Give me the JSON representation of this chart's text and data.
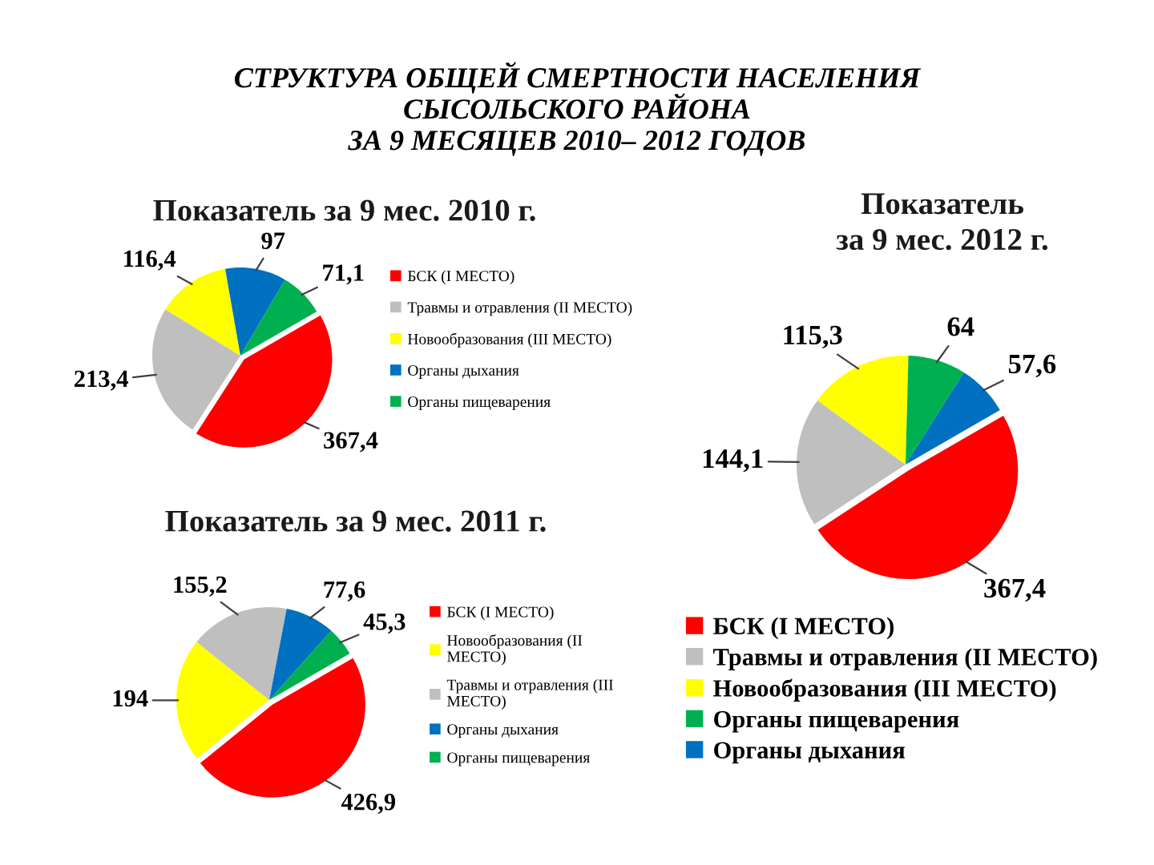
{
  "chart_data": [
    {
      "type": "pie",
      "title": "Показатель за 9 мес. 2010 г.",
      "annotations": [
        "СТРУКТУРА ОБЩЕЙ СМЕРТНОСТИ НАСЕЛЕНИЯ\nСЫСОЛЬСКОГО РАЙОНА\nЗА 9 МЕСЯЦЕВ 2010– 2012 ГОДОВ"
      ],
      "categories": [
        "БСК (I МЕСТО)",
        "Травмы и отравления (II МЕСТО)",
        "Новообразования (III МЕСТО)",
        "Органы дыхания",
        "Органы пищеварения"
      ],
      "values": [
        367.4,
        213.4,
        116.4,
        97,
        71.1
      ],
      "value_labels": [
        "367,4",
        "213,4",
        "116,4",
        "97",
        "71,1"
      ],
      "colors": [
        "#ff0000",
        "#bfbfbf",
        "#ffff00",
        "#0070c0",
        "#00b050"
      ],
      "legend": "right"
    },
    {
      "type": "pie",
      "title": "Показатель\nза 9 мес. 2012 г.",
      "categories": [
        "БСК (I МЕСТО)",
        "Травмы и отравления (II МЕСТО)",
        "Новообразования (III МЕСТО)",
        "Органы пищеварения",
        "Органы дыхания"
      ],
      "values": [
        367.4,
        144.1,
        115.3,
        64,
        57.6
      ],
      "value_labels": [
        "367,4",
        "144,1",
        "115,3",
        "64",
        "57,6"
      ],
      "colors": [
        "#ff0000",
        "#bfbfbf",
        "#ffff00",
        "#00b050",
        "#0070c0"
      ],
      "legend": "bottom"
    },
    {
      "type": "pie",
      "title": "Показатель за 9 мес. 2011 г.",
      "categories": [
        "БСК (I МЕСТО)",
        "Новообразования (II\nМЕСТО)",
        "Травмы и отравления (III\nМЕСТО)",
        "Органы дыхания",
        "Органы пищеварения"
      ],
      "values": [
        426.9,
        194,
        155.2,
        77.6,
        45.3
      ],
      "value_labels": [
        "426,9",
        "194",
        "155,2",
        "77,6",
        "45,3"
      ],
      "colors": [
        "#ff0000",
        "#ffff00",
        "#bfbfbf",
        "#0070c0",
        "#00b050"
      ],
      "legend": "right"
    }
  ]
}
